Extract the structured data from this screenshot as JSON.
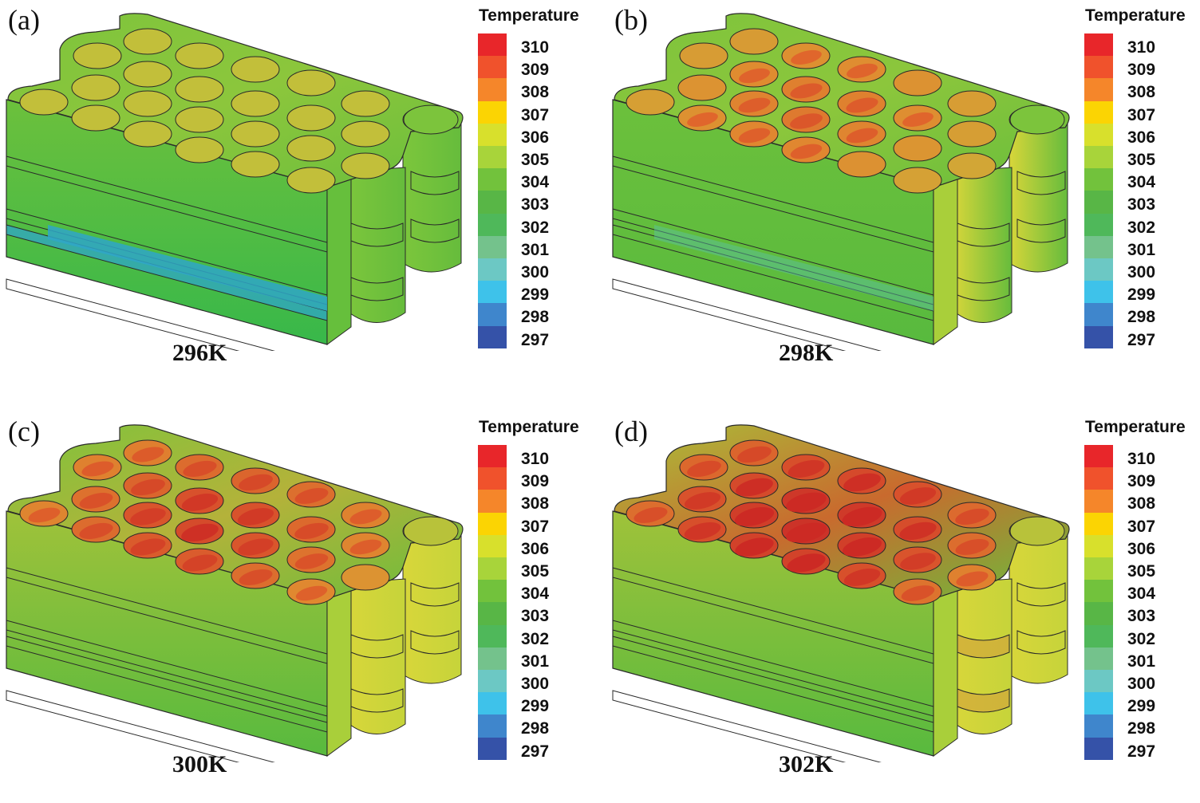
{
  "legend": {
    "title": "Temperature",
    "levels": [
      "310",
      "309",
      "308",
      "307",
      "306",
      "305",
      "304",
      "303",
      "302",
      "301",
      "300",
      "299",
      "298",
      "297"
    ],
    "colors": [
      "#e8262a",
      "#f0522c",
      "#f5862a",
      "#fbd403",
      "#d8e02c",
      "#a8d43a",
      "#72c23c",
      "#58b646",
      "#4fb85a",
      "#74c28c",
      "#6cc8c4",
      "#3ec2ea",
      "#3f86cc",
      "#3552a8"
    ]
  },
  "panels": [
    {
      "label": "(a)",
      "caption": "296K",
      "heat": 0
    },
    {
      "label": "(b)",
      "caption": "298K",
      "heat": 1
    },
    {
      "label": "(c)",
      "caption": "300K",
      "heat": 2
    },
    {
      "label": "(d)",
      "caption": "302K",
      "heat": 3
    }
  ],
  "palette": {
    "body_green": "#5bbf3c",
    "edge": "#2a2a2a",
    "cold_blue": "#2fa6c8"
  }
}
